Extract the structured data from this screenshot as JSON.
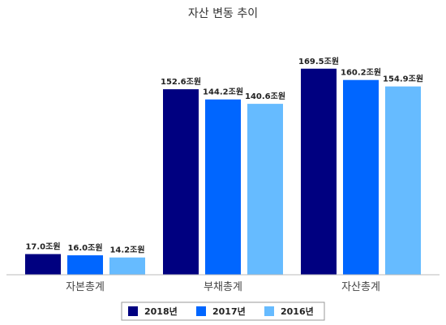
{
  "chart_data": {
    "type": "bar",
    "title": "자산 변동 추이",
    "categories": [
      "자본총계",
      "부채총계",
      "자산총계"
    ],
    "series": [
      {
        "name": "2018년",
        "color": "#000080",
        "values": [
          17.0,
          152.6,
          169.5
        ],
        "labels": [
          "17.0조원",
          "152.6조원",
          "169.5조원"
        ]
      },
      {
        "name": "2017년",
        "color": "#0066ff",
        "values": [
          16.0,
          144.2,
          160.2
        ],
        "labels": [
          "16.0조원",
          "144.2조원",
          "160.2조원"
        ]
      },
      {
        "name": "2016년",
        "color": "#66bbff",
        "values": [
          14.2,
          140.6,
          154.9
        ],
        "labels": [
          "14.2조원",
          "140.6조원",
          "154.9조원"
        ]
      }
    ],
    "ylim": [
      0,
      200
    ],
    "grid": false,
    "legend_position": "bottom"
  }
}
